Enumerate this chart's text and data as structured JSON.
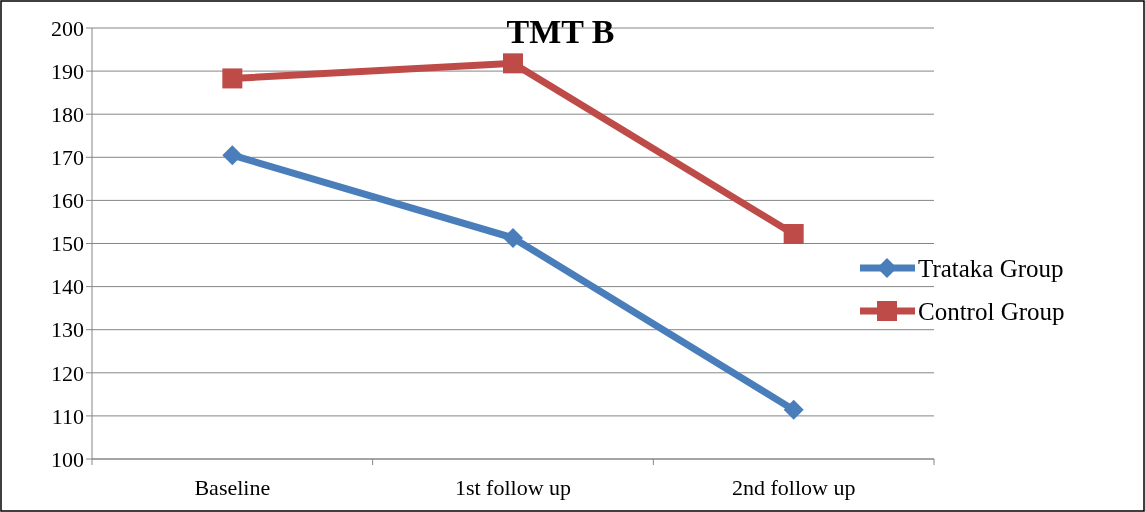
{
  "chart_data": {
    "type": "line",
    "title": "TMT B",
    "categories": [
      "Baseline",
      "1st follow up",
      "2nd follow up"
    ],
    "series": [
      {
        "name": "Trataka Group",
        "color": "#4a7ebb",
        "marker": "diamond",
        "values": [
          170.5,
          151.3,
          111.4
        ]
      },
      {
        "name": "Control Group",
        "color": "#be4b48",
        "marker": "square",
        "values": [
          188.3,
          191.8,
          152.2
        ]
      }
    ],
    "ylim": [
      100,
      200
    ],
    "yticks": [
      100,
      110,
      120,
      130,
      140,
      150,
      160,
      170,
      180,
      190,
      200
    ],
    "grid": "y",
    "legend": "right",
    "line_style": "solid"
  }
}
